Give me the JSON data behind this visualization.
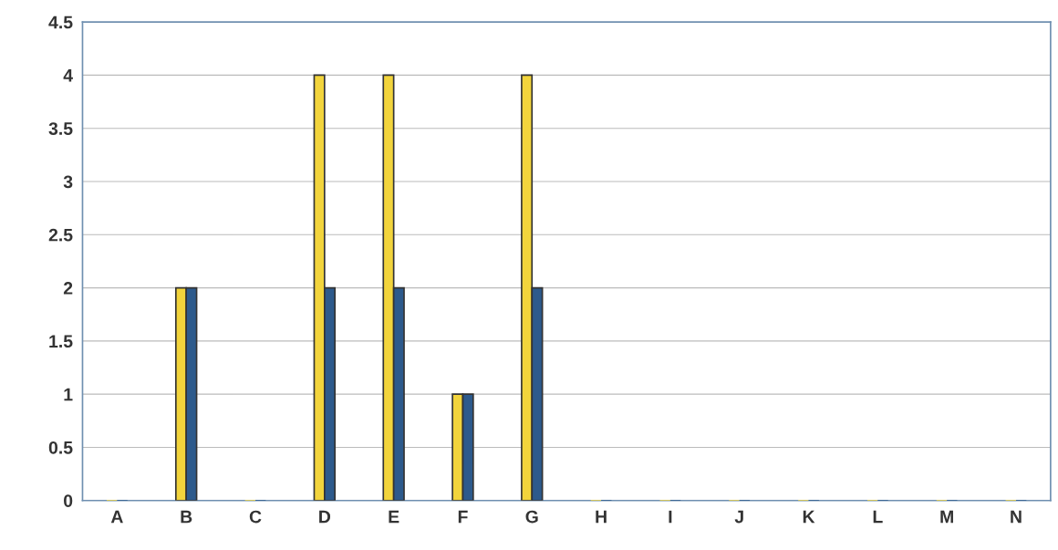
{
  "chart_data": {
    "type": "bar",
    "categories": [
      "A",
      "B",
      "C",
      "D",
      "E",
      "F",
      "G",
      "H",
      "I",
      "J",
      "K",
      "L",
      "M",
      "N"
    ],
    "series": [
      {
        "color": "#f2d43c",
        "values": [
          0,
          2,
          0,
          4,
          4,
          1,
          4,
          0,
          0,
          0,
          0,
          0,
          0,
          0
        ]
      },
      {
        "color": "#2d5a8c",
        "values": [
          0,
          2,
          0,
          2,
          2,
          1,
          2,
          0,
          0,
          0,
          0,
          0,
          0,
          0
        ]
      }
    ],
    "ylim": [
      0,
      4.5
    ],
    "yticks": [
      0,
      0.5,
      1,
      1.5,
      2,
      2.5,
      3,
      3.5,
      4,
      4.5
    ],
    "grid": "y"
  }
}
